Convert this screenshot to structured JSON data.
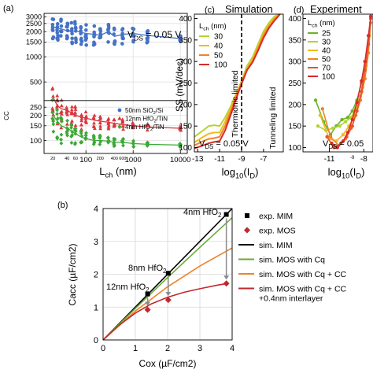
{
  "chart_data": [
    {
      "id": "a",
      "panel_label": "(a)",
      "type": "scatter",
      "xlabel_main": "L",
      "xlabel_sub": "ch",
      "xlabel_unit": " (nm)",
      "ylabel_fragment": "CC",
      "annotation_main": "V",
      "annotation_sub": "DS",
      "annotation_rest": " = 0.05 V",
      "x_scale": "log",
      "xlim": [
        13,
        14000
      ],
      "y_scale": "log",
      "ylim": [
        70,
        3300
      ],
      "xticks": [
        {
          "v": 100,
          "label": "100"
        },
        {
          "v": 1000,
          "label": "1000"
        },
        {
          "v": 10000,
          "label": "10000"
        }
      ],
      "xticks_small": [
        {
          "v": 20,
          "label": "20"
        },
        {
          "v": 40,
          "label": "40"
        },
        {
          "v": 60,
          "label": "60"
        },
        {
          "v": 200,
          "label": "200"
        },
        {
          "v": 400,
          "label": "400"
        },
        {
          "v": 600,
          "label": "600"
        }
      ],
      "yticks": [
        {
          "v": 100,
          "label": "100"
        },
        {
          "v": 150,
          "label": "150"
        },
        {
          "v": 200,
          "label": "200"
        },
        {
          "v": 250,
          "label": "250"
        },
        {
          "v": 500,
          "label": "500"
        },
        {
          "v": 1000,
          "label": "1000"
        },
        {
          "v": 1500,
          "label": "1500"
        },
        {
          "v": 2000,
          "label": "2000"
        },
        {
          "v": 2500,
          "label": "2500"
        },
        {
          "v": 3000,
          "label": "3000"
        }
      ],
      "legend": [
        {
          "name": "50nm SiO",
          "sub": "2",
          "rest": "/Si",
          "color": "#4472c4",
          "marker": "circle"
        },
        {
          "name": "12nm HfO",
          "sub": "2",
          "rest": "/TiN",
          "color": "#d9363e",
          "marker": "triangle"
        },
        {
          "name": "4nm HfO",
          "sub": "2",
          "rest": "/TiN",
          "color": "#3aa935",
          "marker": "diamond"
        }
      ],
      "series": [
        {
          "name": "50nm SiO2/Si",
          "color": "#4472c4",
          "x": [
            20,
            25,
            30,
            40,
            50,
            60,
            80,
            100,
            150,
            200,
            300,
            400,
            600,
            1000,
            2000,
            10000
          ],
          "mean": [
            2250,
            2200,
            2150,
            2050,
            2000,
            2050,
            1950,
            1900,
            1850,
            1800,
            2000,
            1750,
            1850,
            1900,
            1800,
            1650
          ],
          "spread": [
            700,
            650,
            650,
            600,
            600,
            600,
            550,
            550,
            500,
            500,
            500,
            450,
            450,
            400,
            350,
            150
          ]
        },
        {
          "name": "12nm HfO2/TiN",
          "color": "#d9363e",
          "x": [
            20,
            25,
            30,
            40,
            50,
            60,
            80,
            100,
            150,
            200,
            300,
            400,
            600,
            1000,
            2000,
            10000
          ],
          "mean": [
            330,
            260,
            240,
            230,
            210,
            200,
            190,
            185,
            175,
            170,
            165,
            160,
            155,
            150,
            145,
            140
          ],
          "spread": [
            170,
            120,
            100,
            90,
            70,
            60,
            55,
            50,
            40,
            35,
            30,
            25,
            25,
            20,
            15,
            10
          ]
        },
        {
          "name": "4nm HfO2/TiN",
          "color": "#3aa935",
          "x": [
            20,
            25,
            30,
            40,
            50,
            60,
            80,
            100,
            150,
            200,
            300,
            400,
            600,
            1000,
            2000,
            10000
          ],
          "mean": [
            200,
            170,
            150,
            140,
            130,
            120,
            110,
            105,
            100,
            100,
            98,
            95,
            95,
            92,
            90,
            88
          ],
          "spread": [
            110,
            80,
            60,
            50,
            40,
            30,
            25,
            20,
            15,
            15,
            12,
            10,
            10,
            8,
            6,
            4
          ]
        }
      ]
    },
    {
      "id": "c",
      "panel_label": "(c)",
      "type": "line",
      "title": "Simulation",
      "xlabel_main": "log",
      "xlabel_sub": "10",
      "xlabel_rest": "(I",
      "xlabel_sub2": "D",
      "xlabel_end": ")",
      "ylabel": "SS (mV/dec)",
      "xlim": [
        -13.3,
        -5.2
      ],
      "ylim": [
        90,
        410
      ],
      "xticks": [
        -13,
        -11,
        -9,
        -7
      ],
      "yticks": [
        100,
        150,
        200,
        250,
        300,
        350,
        400
      ],
      "vline_x": -9,
      "annotation_left": "Thermionic limited",
      "annotation_right": "Tunneling limited",
      "annotation_main": "V",
      "annotation_sub": "DS",
      "annotation_rest": " = 0.05 V",
      "legend_title_main": "L",
      "legend_title_sub": "ch",
      "legend_title_unit": " (nm)",
      "series": [
        {
          "name": "30",
          "color": "#b5d334",
          "x": [
            -13.3,
            -12.5,
            -12,
            -11.5,
            -11,
            -10.5,
            -10,
            -9.5,
            -9,
            -8.5,
            -8,
            -7.5,
            -7,
            -6.5,
            -6,
            -5.5
          ],
          "y": [
            125,
            140,
            150,
            152,
            150,
            170,
            195,
            225,
            255,
            290,
            310,
            340,
            370,
            390,
            405,
            410
          ]
        },
        {
          "name": "40",
          "color": "#f0bb1e",
          "x": [
            -13.3,
            -12.5,
            -12,
            -11.5,
            -11,
            -10.5,
            -10,
            -9.5,
            -9,
            -8.5,
            -8,
            -7.5,
            -7,
            -6.5,
            -6,
            -5.5
          ],
          "y": [
            112,
            125,
            132,
            135,
            135,
            160,
            190,
            222,
            252,
            285,
            305,
            335,
            365,
            385,
            400,
            410
          ]
        },
        {
          "name": "50",
          "color": "#f08228",
          "x": [
            -13.3,
            -12.5,
            -12,
            -11.5,
            -11,
            -10.5,
            -10,
            -9.5,
            -9,
            -8.5,
            -8,
            -7.5,
            -7,
            -6.5,
            -6,
            -5.5
          ],
          "y": [
            105,
            115,
            120,
            122,
            125,
            150,
            183,
            218,
            250,
            282,
            300,
            330,
            360,
            382,
            398,
            410
          ]
        },
        {
          "name": "100",
          "color": "#d92b2b",
          "x": [
            -13.3,
            -12.5,
            -12,
            -11.5,
            -11,
            -10.5,
            -10,
            -9.5,
            -9,
            -8.5,
            -8,
            -7.5,
            -7,
            -6.5,
            -6,
            -5.5
          ],
          "y": [
            98,
            105,
            110,
            113,
            115,
            140,
            175,
            213,
            248,
            280,
            298,
            325,
            355,
            378,
            395,
            410
          ]
        }
      ]
    },
    {
      "id": "d",
      "panel_label": "(d)",
      "type": "line",
      "title": "Experiment",
      "xlabel_main": "log",
      "xlabel_sub": "10",
      "xlabel_rest": "(I",
      "xlabel_sub2": "D",
      "xlabel_end": ")",
      "xlim": [
        -13.3,
        -7.2
      ],
      "ylim": [
        90,
        410
      ],
      "xticks": [
        -11,
        -8
      ],
      "xticks_small": [
        -9
      ],
      "yticks": [
        100,
        150,
        200,
        250,
        300,
        350,
        400
      ],
      "annotation_main": "V",
      "annotation_sub": "DS",
      "annotation_rest": " = 0.05",
      "legend_title_main": "L",
      "legend_title_sub": "ch",
      "legend_title_unit": " (nm)",
      "series": [
        {
          "name": "25",
          "color": "#6ab42d",
          "x": [
            -12.2,
            -11.5,
            -10.9,
            -10.4,
            -9.9,
            -9.4,
            -9.0,
            -8.6,
            -8.2,
            -7.9
          ],
          "y": [
            210,
            160,
            130,
            150,
            165,
            170,
            185,
            210,
            250,
            300
          ]
        },
        {
          "name": "30",
          "color": "#b5d334",
          "x": [
            -12.0,
            -11.3,
            -10.7,
            -10.1,
            -9.6,
            -9.1,
            -8.7,
            -8.3,
            -8.0,
            -7.7
          ],
          "y": [
            150,
            140,
            145,
            150,
            160,
            170,
            190,
            220,
            260,
            320
          ]
        },
        {
          "name": "40",
          "color": "#f0bb1e",
          "x": [
            -11.8,
            -11.0,
            -10.4,
            -9.8,
            -9.3,
            -8.9,
            -8.5,
            -8.1,
            -7.8,
            -7.5
          ],
          "y": [
            175,
            120,
            115,
            130,
            150,
            170,
            200,
            240,
            290,
            360
          ]
        },
        {
          "name": "50",
          "color": "#f08228",
          "x": [
            -11.6,
            -10.9,
            -10.2,
            -9.6,
            -9.1,
            -8.7,
            -8.3,
            -7.9,
            -7.6,
            -7.4
          ],
          "y": [
            190,
            125,
            105,
            120,
            145,
            175,
            210,
            260,
            320,
            390
          ]
        },
        {
          "name": "70",
          "color": "#e4542a",
          "x": [
            -11.2,
            -10.6,
            -10.0,
            -9.5,
            -9.0,
            -8.6,
            -8.2,
            -7.9,
            -7.6,
            -7.4
          ],
          "y": [
            125,
            100,
            110,
            125,
            150,
            185,
            230,
            280,
            340,
            400
          ]
        },
        {
          "name": "100",
          "color": "#d92b2b",
          "x": [
            -10.8,
            -10.3,
            -9.8,
            -9.4,
            -9.0,
            -8.6,
            -8.2,
            -7.9,
            -7.6,
            -7.4
          ],
          "y": [
            110,
            100,
            115,
            135,
            165,
            205,
            255,
            300,
            360,
            405
          ]
        }
      ]
    },
    {
      "id": "b",
      "panel_label": "(b)",
      "type": "line",
      "xlabel": "Cox (µF/cm2)",
      "ylabel": "Cacc (µF/cm2)",
      "xlim": [
        0,
        4
      ],
      "ylim": [
        0,
        4
      ],
      "xticks": [
        0,
        1,
        2,
        3,
        4
      ],
      "yticks": [
        0,
        1,
        2,
        3,
        4
      ],
      "grid": true,
      "legend": [
        {
          "label": "exp. MIM",
          "color": "#000000",
          "marker": "square"
        },
        {
          "label": "exp. MOS",
          "color": "#c0282d",
          "marker": "diamond"
        },
        {
          "label": "sim. MIM",
          "color": "#000000",
          "marker": "line"
        },
        {
          "label": "sim. MOS with Cq",
          "color": "#6aaa3a",
          "marker": "line"
        },
        {
          "label": "sim. MOS with Cq + CC",
          "color": "#f08228",
          "marker": "line"
        },
        {
          "label": "sim. MOS with Cq + CC",
          "label2": "+0.4nm interlayer",
          "color": "#c0282d",
          "marker": "line"
        }
      ],
      "lines": [
        {
          "name": "sim. MIM",
          "color": "#000000",
          "x": [
            0,
            4
          ],
          "y": [
            0,
            4
          ]
        },
        {
          "name": "sim. MOS with Cq",
          "color": "#6aaa3a",
          "x": [
            0,
            1,
            2,
            3,
            4
          ],
          "y": [
            0,
            0.96,
            1.9,
            2.82,
            3.72
          ]
        },
        {
          "name": "sim. MOS with Cq + CC",
          "color": "#f08228",
          "x": [
            0,
            1,
            2,
            3,
            4
          ],
          "y": [
            0,
            0.88,
            1.62,
            2.25,
            2.8
          ]
        },
        {
          "name": "sim. MOS with Cq + CC +0.4nm interlayer",
          "color": "#c0282d",
          "x": [
            0,
            0.5,
            1,
            1.5,
            2,
            2.5,
            3,
            3.5,
            3.85
          ],
          "y": [
            0,
            0.45,
            0.82,
            1.1,
            1.3,
            1.45,
            1.56,
            1.66,
            1.72
          ]
        }
      ],
      "exp_mim": {
        "x": [
          1.38,
          2.02,
          3.82
        ],
        "y": [
          1.4,
          2.03,
          3.82
        ]
      },
      "exp_mos": {
        "x": [
          1.38,
          2.02,
          3.82
        ],
        "y": [
          0.92,
          1.22,
          1.72
        ]
      },
      "annotations": [
        {
          "main": "4nm HfO",
          "sub": "2",
          "at_x": 3.82
        },
        {
          "main": "8nm HfO",
          "sub": "2",
          "at_x": 2.02
        },
        {
          "main": "12nm HfO",
          "sub": "2",
          "at_x": 1.38
        }
      ]
    }
  ]
}
